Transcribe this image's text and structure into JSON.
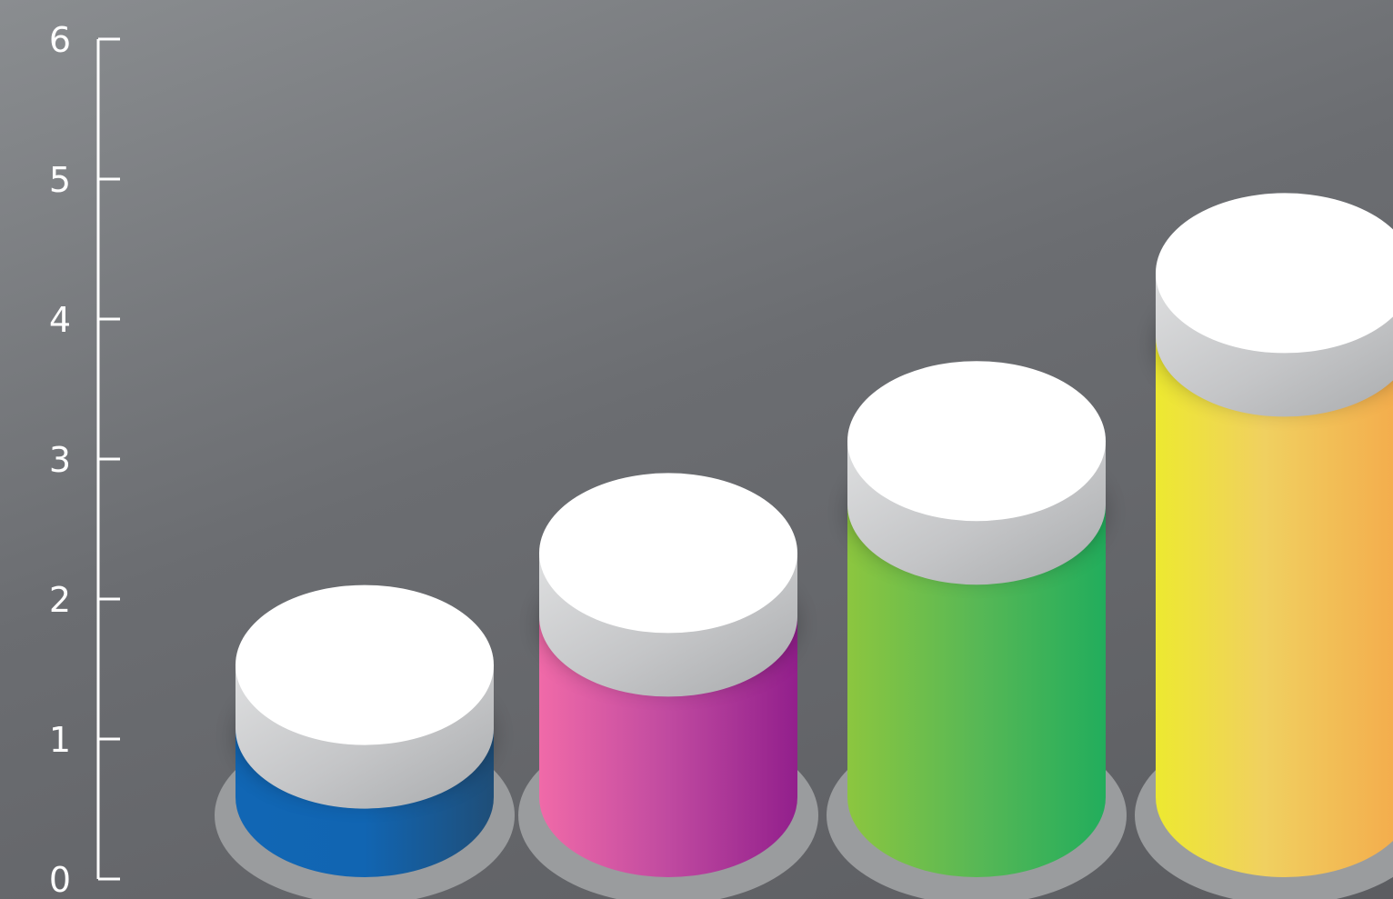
{
  "chart_data": {
    "type": "bar",
    "title": "",
    "xlabel": "",
    "ylabel": "",
    "categories": [
      "",
      "",
      "",
      ""
    ],
    "values": [
      2.1,
      2.9,
      3.7,
      4.9
    ],
    "ylim": [
      0,
      6
    ],
    "yticks": [
      "0",
      "1",
      "2",
      "3",
      "4",
      "5",
      "6"
    ],
    "grid": false,
    "legend": "none",
    "bar_style": "3d-cylinder-with-white-cap",
    "colors": [
      {
        "light": "#1166b4",
        "mid": "#1165b2",
        "dark": "#1f4e78"
      },
      {
        "light": "#f06aa8",
        "mid": "#c04aa0",
        "dark": "#921f8c"
      },
      {
        "light": "#8cc63f",
        "mid": "#58b855",
        "dark": "#22ad5c"
      },
      {
        "light": "#ede930",
        "mid": "#f0d060",
        "dark": "#f4a84a"
      }
    ],
    "background": "#6e7074",
    "axis_color": "#ffffff"
  }
}
